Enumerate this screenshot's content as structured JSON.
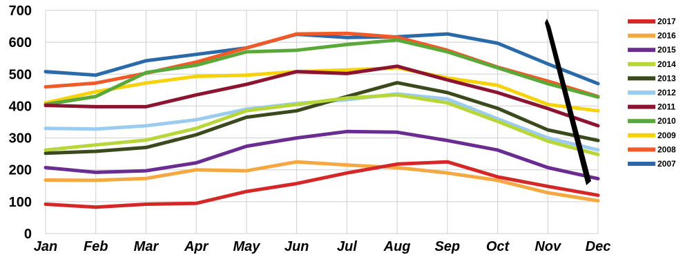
{
  "chart_data": {
    "type": "line",
    "categories": [
      "Jan",
      "Feb",
      "Mar",
      "Apr",
      "May",
      "Jun",
      "Jul",
      "Aug",
      "Sep",
      "Oct",
      "Nov",
      "Dec"
    ],
    "ylim": [
      0,
      700
    ],
    "yticks": [
      "0",
      "100",
      "200",
      "300",
      "400",
      "500",
      "600",
      "700"
    ],
    "grid": true,
    "legend_position": "right",
    "series": [
      {
        "name": "2017",
        "color": "#d62728",
        "values": [
          92,
          83,
          92,
          95,
          132,
          157,
          190,
          218,
          225,
          178,
          148,
          120
        ]
      },
      {
        "name": "2016",
        "color": "#f5a742",
        "values": [
          168,
          167,
          173,
          200,
          197,
          225,
          215,
          207,
          190,
          167,
          128,
          103
        ]
      },
      {
        "name": "2015",
        "color": "#6a2c91",
        "values": [
          207,
          192,
          197,
          222,
          274,
          300,
          320,
          318,
          292,
          262,
          207,
          172
        ]
      },
      {
        "name": "2014",
        "color": "#b7d63a",
        "values": [
          262,
          278,
          293,
          330,
          385,
          405,
          425,
          435,
          410,
          352,
          290,
          248
        ]
      },
      {
        "name": "2013",
        "color": "#3a4a1c",
        "values": [
          252,
          258,
          270,
          310,
          365,
          385,
          430,
          473,
          442,
          393,
          325,
          292
        ]
      },
      {
        "name": "2012",
        "color": "#9bcbee",
        "values": [
          330,
          328,
          338,
          357,
          390,
          408,
          420,
          438,
          422,
          360,
          300,
          262
        ]
      },
      {
        "name": "2011",
        "color": "#8b1430",
        "values": [
          402,
          398,
          398,
          435,
          468,
          508,
          502,
          525,
          482,
          442,
          392,
          338
        ]
      },
      {
        "name": "2010",
        "color": "#5aa83a",
        "values": [
          405,
          430,
          505,
          528,
          570,
          575,
          593,
          607,
          570,
          520,
          470,
          428
        ]
      },
      {
        "name": "2009",
        "color": "#f5d20a",
        "values": [
          410,
          445,
          472,
          493,
          497,
          508,
          513,
          520,
          488,
          465,
          405,
          385
        ]
      },
      {
        "name": "2008",
        "color": "#f05a28",
        "values": [
          460,
          472,
          503,
          538,
          582,
          626,
          628,
          616,
          575,
          522,
          478,
          430
        ]
      },
      {
        "name": "2007",
        "color": "#2a6aa8",
        "values": [
          508,
          497,
          542,
          562,
          582,
          625,
          615,
          617,
          626,
          597,
          532,
          470
        ]
      }
    ]
  }
}
